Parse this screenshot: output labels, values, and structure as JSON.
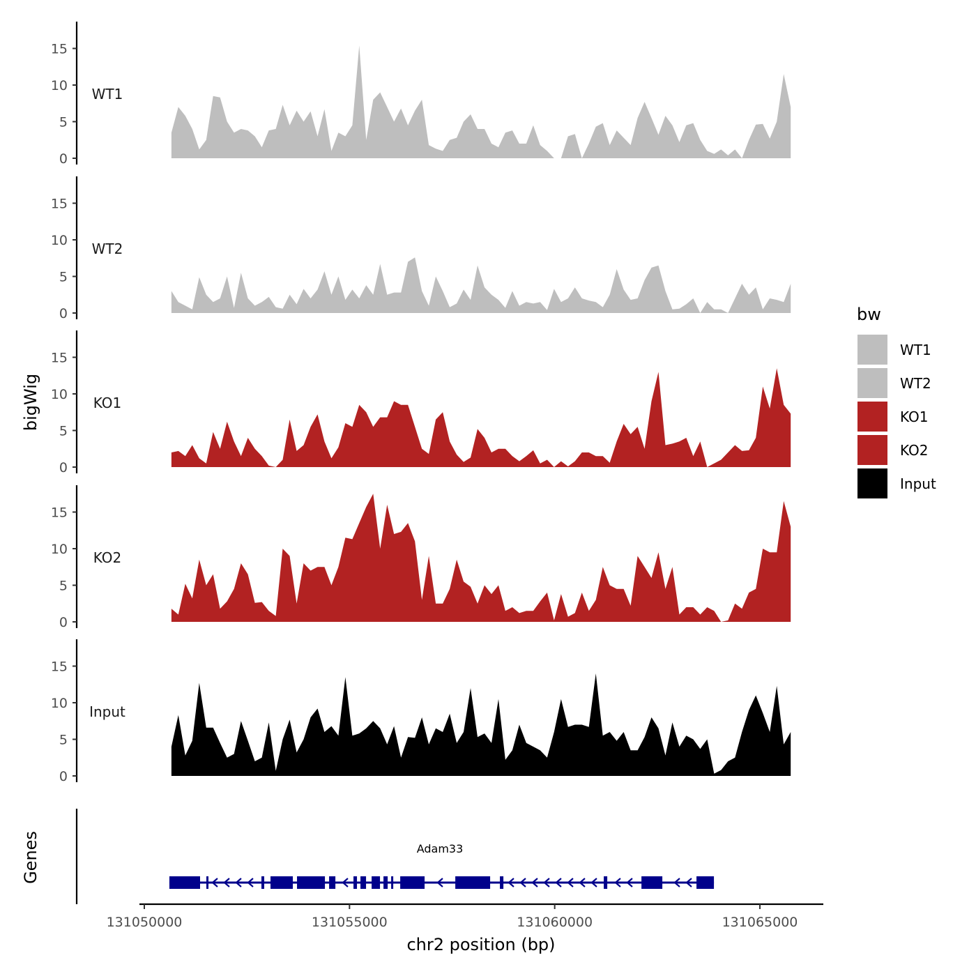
{
  "chart_data": {
    "type": "area",
    "title": "",
    "ylabel": "bigWig",
    "gene_panel_label": "Genes",
    "xlabel": "chr2 position (bp)",
    "xlim": [
      131049750,
      131066500
    ],
    "ylim": [
      0,
      18.5
    ],
    "x_ticks": [
      131050000,
      131055000,
      131060000,
      131065000
    ],
    "x_tick_labels": [
      "131050000",
      "131055000",
      "131060000",
      "131065000"
    ],
    "y_ticks": [
      0,
      5,
      10,
      15
    ],
    "y_tick_labels": [
      "0",
      "5",
      "10",
      "15"
    ],
    "x_start": 131050660,
    "x_end": 131065750,
    "legend": {
      "title": "bw",
      "placement": "right",
      "entries": [
        {
          "label": "WT1",
          "color": "#BEBEBE"
        },
        {
          "label": "WT2",
          "color": "#BEBEBE"
        },
        {
          "label": "KO1",
          "color": "#B22222"
        },
        {
          "label": "KO2",
          "color": "#B22222"
        },
        {
          "label": "Input",
          "color": "#000000"
        }
      ]
    },
    "tracks": [
      {
        "name": "WT1",
        "color": "#BEBEBE",
        "values": [
          3.5,
          7,
          5.8,
          4,
          1.2,
          2.5,
          8.5,
          8.3,
          5,
          3.5,
          4,
          3.8,
          3,
          1.5,
          3.8,
          4,
          7.3,
          4.5,
          6.5,
          5,
          6.4,
          3,
          6.7,
          1,
          3.5,
          3,
          4.5,
          15.4,
          2.5,
          8,
          9,
          7,
          5,
          6.8,
          4.5,
          6.5,
          8,
          1.8,
          1.3,
          1,
          2.5,
          2.8,
          5,
          6,
          4,
          4,
          2,
          1.5,
          3.5,
          3.8,
          2,
          2,
          4.5,
          1.8,
          1,
          0,
          0,
          3,
          3.3,
          0,
          2,
          4.3,
          4.8,
          1.8,
          3.8,
          2.8,
          1.8,
          5.5,
          7.7,
          5.5,
          3.2,
          5.8,
          4.5,
          2.2,
          4.5,
          4.8,
          2.5,
          1,
          0.6,
          1.2,
          0.4,
          1.2,
          0,
          2.5,
          4.6,
          4.7,
          2.7,
          5,
          11.5,
          7
        ]
      },
      {
        "name": "WT2",
        "color": "#BEBEBE",
        "values": [
          3,
          1.5,
          1,
          0.5,
          4.9,
          2.5,
          1.5,
          2,
          5,
          0.7,
          5.5,
          2,
          1,
          1.5,
          2.2,
          0.8,
          0.6,
          2.5,
          1.2,
          3.3,
          2,
          3.2,
          5.7,
          2.5,
          5,
          1.8,
          3.2,
          2,
          3.8,
          2.5,
          6.7,
          2.5,
          2.8,
          2.8,
          7,
          7.6,
          3,
          1,
          5,
          3,
          0.8,
          1.3,
          3.2,
          1.8,
          6.5,
          3.5,
          2.5,
          1.8,
          0.7,
          3,
          1,
          1.5,
          1.3,
          1.5,
          0.4,
          3.3,
          1.5,
          2,
          3.5,
          2,
          1.7,
          1.5,
          0.8,
          2.5,
          6,
          3.2,
          1.8,
          2,
          4.5,
          6.2,
          6.5,
          3,
          0.5,
          0.6,
          1.2,
          2,
          0,
          1.5,
          0.5,
          0.5,
          0,
          2,
          4,
          2.5,
          3.5,
          0.5,
          2,
          1.8,
          1.5,
          4
        ]
      },
      {
        "name": "KO1",
        "color": "#B22222",
        "values": [
          2,
          2.2,
          1.5,
          3,
          1.2,
          0.5,
          4.8,
          2.5,
          6.2,
          3.5,
          1.5,
          4,
          2.5,
          1.5,
          0.2,
          0,
          1,
          6.5,
          2.2,
          3,
          5.5,
          7.2,
          3.5,
          1.2,
          2.7,
          6,
          5.5,
          8.5,
          7.5,
          5.5,
          6.8,
          6.8,
          9,
          8.5,
          8.5,
          5.5,
          2.5,
          1.8,
          6.5,
          7.5,
          3.5,
          1.7,
          0.7,
          1.3,
          5.2,
          4,
          2,
          2.5,
          2.5,
          1.5,
          0.8,
          1.5,
          2.3,
          0.5,
          1,
          0,
          0.8,
          0.1,
          0.8,
          2,
          2,
          1.5,
          1.5,
          0.6,
          3.5,
          5.9,
          4.5,
          5.5,
          2.5,
          9,
          13,
          3,
          3.2,
          3.5,
          4,
          1.5,
          3.5,
          0,
          0.5,
          1,
          2,
          3,
          2.2,
          2.3,
          4,
          11,
          8,
          13.5,
          8.5,
          7.3
        ]
      },
      {
        "name": "KO2",
        "color": "#B22222",
        "values": [
          1.8,
          1,
          5.2,
          3.2,
          8.5,
          5,
          6.5,
          1.8,
          2.8,
          4.5,
          8,
          6.5,
          2.6,
          2.7,
          1.5,
          0.8,
          10,
          9,
          2.5,
          8,
          7,
          7.5,
          7.5,
          5,
          7.5,
          11.5,
          11.3,
          13.5,
          15.7,
          17.5,
          10,
          16,
          12,
          12.3,
          13.5,
          11,
          3,
          9,
          2.5,
          2.5,
          4.5,
          8.5,
          5.5,
          4.8,
          2.5,
          5,
          3.8,
          5,
          1.5,
          2,
          1.2,
          1.5,
          1.5,
          2.8,
          4,
          0.2,
          3.8,
          0.7,
          1.2,
          4,
          1.5,
          3,
          7.5,
          5,
          4.5,
          4.5,
          2.2,
          9,
          7.5,
          6,
          9.5,
          4.5,
          7.5,
          1,
          2,
          2,
          1,
          2,
          1.5,
          0,
          0.2,
          2.5,
          1.8,
          4,
          4.5,
          10,
          9.5,
          9.5,
          16.5,
          13
        ]
      },
      {
        "name": "Input",
        "color": "#000000",
        "values": [
          4,
          8.3,
          2.8,
          4.8,
          12.7,
          6.6,
          6.6,
          4.5,
          2.5,
          3,
          7.5,
          4.8,
          2,
          2.5,
          7.3,
          0.7,
          5,
          7.7,
          3.2,
          5,
          8,
          9.2,
          6,
          6.8,
          5.5,
          13.5,
          5.5,
          5.8,
          6.5,
          7.5,
          6.5,
          4.3,
          6.8,
          2.5,
          5.3,
          5.2,
          8,
          4.3,
          6.5,
          6,
          8.5,
          4.5,
          6,
          12,
          5.3,
          5.8,
          4.5,
          10.5,
          2.2,
          3.5,
          7,
          4.5,
          4,
          3.5,
          2.5,
          6,
          10.5,
          6.7,
          7,
          7,
          6.7,
          14,
          5.5,
          6,
          4.8,
          6,
          3.5,
          3.5,
          5.3,
          8,
          6.5,
          2.8,
          7.3,
          4,
          5.5,
          5,
          3.7,
          5,
          0.3,
          0.8,
          2,
          2.5,
          6,
          9,
          11,
          8.6,
          6,
          12.3,
          4.3,
          6
        ]
      }
    ],
    "gene": {
      "name": "Adam33",
      "color": "#00008B",
      "strand": "-",
      "start": 131050611,
      "end": 131063880,
      "exons": [
        [
          131050611,
          131051359
        ],
        [
          131051512,
          131051563
        ],
        [
          131052854,
          131052922
        ],
        [
          131053075,
          131053619
        ],
        [
          131053721,
          131054401
        ],
        [
          131054503,
          131054656
        ],
        [
          131055097,
          131055182
        ],
        [
          131055267,
          131055403
        ],
        [
          131055539,
          131055743
        ],
        [
          131055828,
          131055930
        ],
        [
          131056015,
          131056049
        ],
        [
          131056236,
          131056830
        ],
        [
          131057578,
          131058427
        ],
        [
          131058665,
          131058750
        ],
        [
          131061196,
          131061281
        ],
        [
          131062114,
          131062623
        ],
        [
          131063455,
          131063880
        ]
      ]
    }
  }
}
